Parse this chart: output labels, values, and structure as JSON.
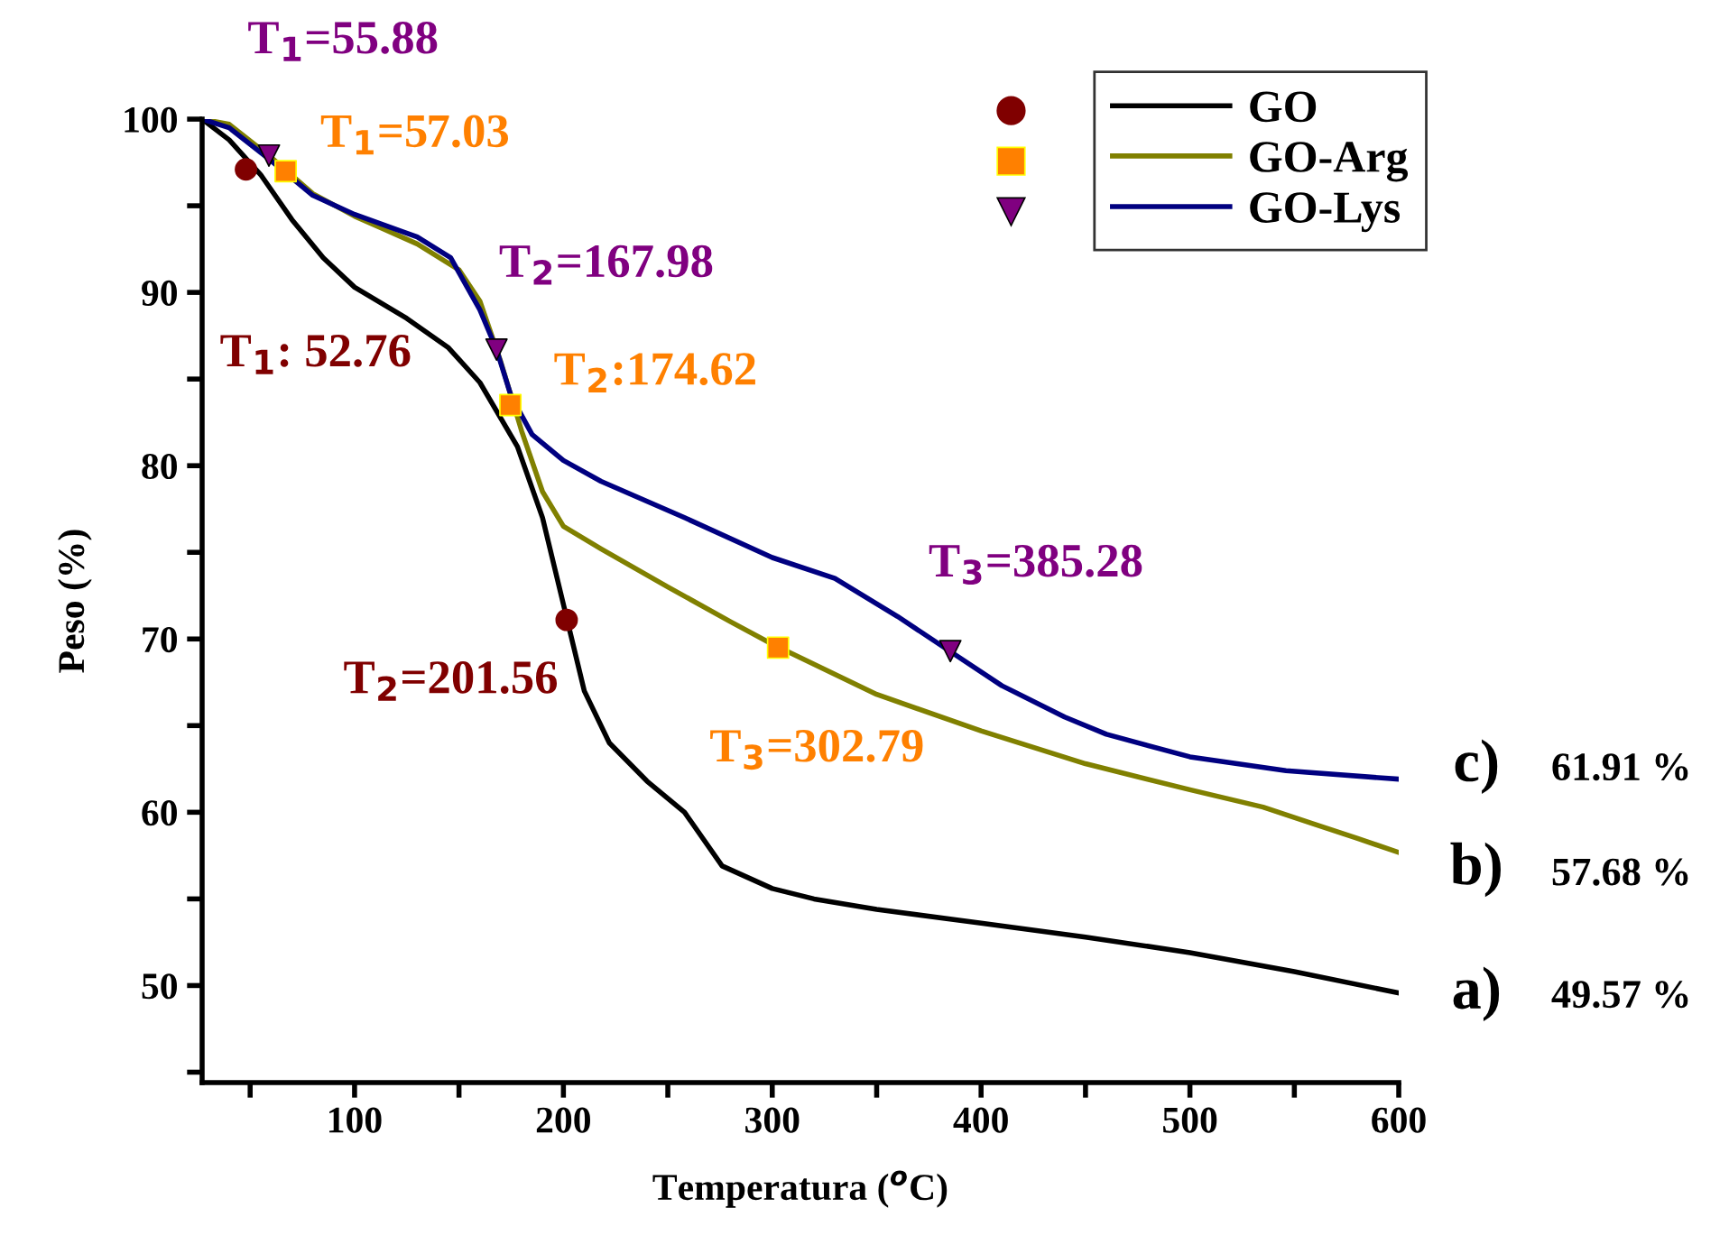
{
  "chart_data": {
    "type": "line",
    "xlabel": "Temperatura ($^{o}$C)",
    "ylabel": "Peso (%)",
    "xlim": [
      27,
      600
    ],
    "ylim": [
      44.4,
      100
    ],
    "xticks": [
      {
        "value": 50,
        "label": null
      },
      100,
      {
        "value": 150,
        "label": null
      },
      200,
      {
        "value": 250,
        "label": null
      },
      300,
      {
        "value": 350,
        "label": null
      },
      400,
      {
        "value": 450,
        "label": null
      },
      500,
      {
        "value": 550,
        "label": null
      },
      600
    ],
    "yticks": [
      {
        "value": 45,
        "label": null
      },
      50,
      {
        "value": 55,
        "label": null
      },
      60,
      {
        "value": 65,
        "label": null
      },
      70,
      {
        "value": 75,
        "label": null
      },
      80,
      {
        "value": 85,
        "label": null
      },
      90,
      {
        "value": 95,
        "label": null
      },
      100
    ],
    "grid": false,
    "legend": "top right",
    "line_style": "solid",
    "series": [
      {
        "name": "GO",
        "color": "#000000",
        "x": [
          27,
          40,
          55,
          70,
          85,
          100,
          125,
          145,
          160,
          178,
          190,
          200,
          210,
          222,
          240,
          258,
          276,
          300,
          320,
          350,
          400,
          450,
          500,
          550,
          600
        ],
        "values": [
          100,
          98.8,
          96.8,
          94.2,
          92,
          90.3,
          88.5,
          86.8,
          84.8,
          81.1,
          77,
          72,
          67,
          64,
          61.8,
          60,
          56.9,
          55.6,
          55,
          54.4,
          53.6,
          52.8,
          51.9,
          50.8,
          49.57
        ]
      },
      {
        "name": "GO-Arg",
        "color": "#808000",
        "x": [
          27,
          40,
          60,
          80,
          100,
          130,
          150,
          160,
          170,
          180,
          190,
          200,
          218,
          250,
          280,
          300,
          350,
          400,
          450,
          500,
          535,
          560,
          580,
          600
        ],
        "values": [
          100,
          99.7,
          97.8,
          95.7,
          94.4,
          92.8,
          91.3,
          89.5,
          86,
          82,
          78.5,
          76.5,
          75.2,
          73,
          71,
          69.7,
          66.8,
          64.7,
          62.8,
          61.3,
          60.3,
          59.3,
          58.5,
          57.68
        ]
      },
      {
        "name": "GO-Lys",
        "color": "#000080",
        "x": [
          27,
          40,
          60,
          80,
          100,
          130,
          146,
          160,
          168,
          175,
          185,
          200,
          218,
          258,
          300,
          330,
          360,
          385,
          410,
          440,
          460,
          500,
          546,
          600
        ],
        "values": [
          100,
          99.5,
          97.6,
          95.6,
          94.5,
          93.2,
          92,
          89,
          86.7,
          84,
          81.8,
          80.3,
          79.1,
          77,
          74.7,
          73.5,
          71.3,
          69.3,
          67.3,
          65.5,
          64.5,
          63.2,
          62.4,
          61.91
        ]
      },
      {
        "type": "scatter",
        "marker": "circle",
        "color": "#800000",
        "x": [
          48,
          201.56
        ],
        "values": [
          97.1,
          71.1
        ]
      },
      {
        "type": "scatter",
        "marker": "square",
        "color": "#ff8000",
        "x": [
          67,
          174.62,
          302.79
        ],
        "values": [
          97.0,
          83.5,
          69.5
        ]
      },
      {
        "type": "scatter",
        "marker": "triangle",
        "color": "#800080",
        "x": [
          59,
          167.98,
          385.28
        ],
        "values": [
          97.9,
          86.7,
          69.3
        ]
      }
    ],
    "annotations": [
      "T$_{1}$: 52.76",
      "T$_{2}$=201.56",
      "T$_{1}$=57.03",
      "T$_{2}$:174.62",
      "T$_{3}$=302.79",
      "T$_{1}$=55.88",
      "T$_{2}$=167.98",
      "T$_{3}$=385.28",
      "c)",
      "61.91 %",
      "b)",
      "57.68 %",
      "a)",
      "49.57 %"
    ]
  }
}
